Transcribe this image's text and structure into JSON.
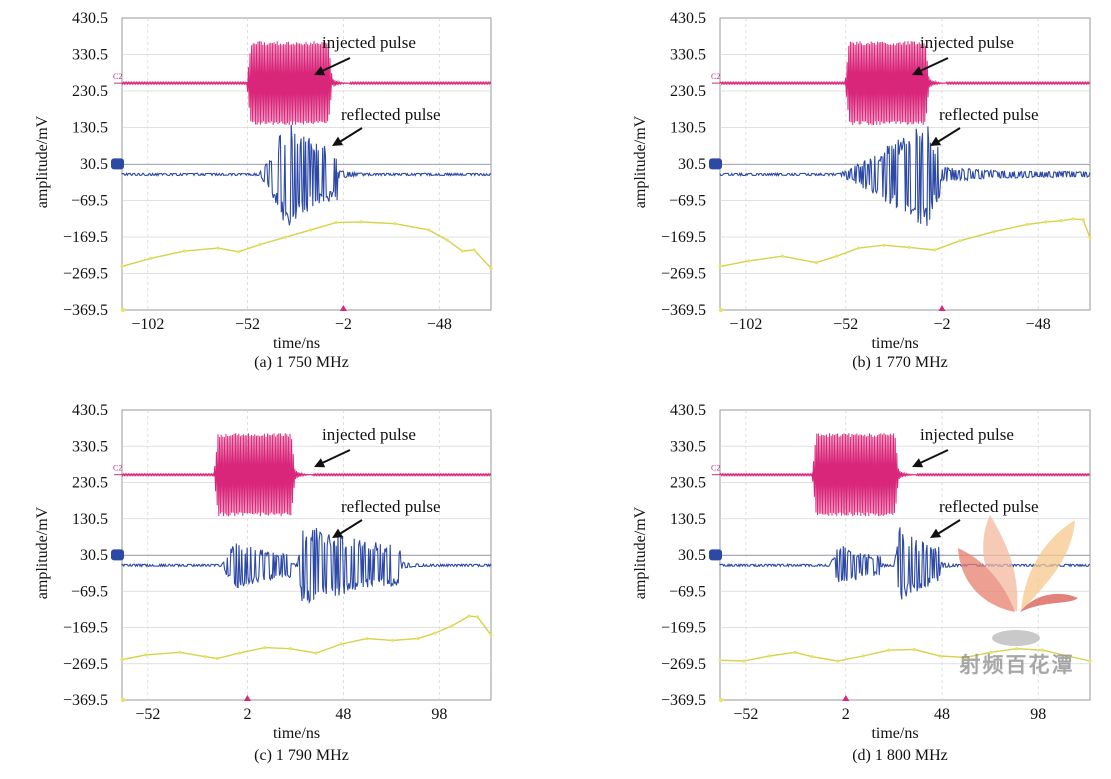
{
  "colors": {
    "injected": "#d9257a",
    "reflected": "#2d49a6",
    "ref_trace": "#d6d24a",
    "ref_marker": "#e6e26a",
    "ch2_marker": "#c4327a",
    "baseline_reflected": "#8e93a3",
    "annotation_text": "#111111"
  },
  "chart_data": [
    {
      "type": "line",
      "panel": "a",
      "caption": "(a) 1 750 MHz",
      "xlabel": "time/ns",
      "ylabel": "amplitude/mV",
      "yticks": [
        "430.5",
        "330.5",
        "230.5",
        "130.5",
        "30.5",
        "−69.5",
        "−169.5",
        "−269.5",
        "−369.5"
      ],
      "xticks": [
        "−102",
        "−52",
        "−2",
        "−48"
      ],
      "ylim": [
        -369.5,
        430.5
      ],
      "xlim": [
        -127,
        92
      ],
      "annotations": [
        "injected pulse",
        "reflected pulse"
      ],
      "trigger_marker": "−2",
      "series": [
        {
          "role": "injected",
          "marker": "C2",
          "baseline": 252,
          "amplitude": 115,
          "start": -53,
          "end": -2
        },
        {
          "role": "reflected",
          "marker": "",
          "baseline": 2,
          "burst": [
            -46,
            1
          ],
          "amplitude": 150,
          "peak_at": -29
        },
        {
          "role": "reference",
          "x": [
            -127,
            -110,
            -90,
            -70,
            -58,
            -45,
            -30,
            -15,
            0,
            15,
            35,
            55,
            66,
            75,
            82,
            92
          ],
          "y": [
            -250,
            -228,
            -208,
            -200,
            -210,
            -190,
            -170,
            -150,
            -130,
            -128,
            -133,
            -150,
            -178,
            -208,
            -205,
            -255
          ]
        }
      ]
    },
    {
      "type": "line",
      "panel": "b",
      "caption": "(b) 1 770 MHz",
      "xlabel": "time/ns",
      "ylabel": "amplitude/mV",
      "yticks": [
        "430.5",
        "330.5",
        "230.5",
        "130.5",
        "30.5",
        "−69.5",
        "−169.5",
        "−269.5",
        "−369.5"
      ],
      "xticks": [
        "−102",
        "−52",
        "−2",
        "−48"
      ],
      "ylim": [
        -369.5,
        430.5
      ],
      "xlim": [
        -127,
        92
      ],
      "annotations": [
        "injected pulse",
        "reflected pulse"
      ],
      "trigger_marker": "−2",
      "series": [
        {
          "role": "injected",
          "marker": "C2",
          "baseline": 252,
          "amplitude": 115,
          "start": -53,
          "end": -3
        },
        {
          "role": "reflected",
          "marker": "",
          "baseline": 2,
          "burst": [
            -58,
            3
          ],
          "amplitude": 150,
          "peak_at": -4,
          "tail": true
        },
        {
          "role": "reference",
          "x": [
            -127,
            -110,
            -90,
            -70,
            -58,
            -45,
            -30,
            -15,
            0,
            15,
            35,
            55,
            66,
            75,
            82,
            88,
            92
          ],
          "y": [
            -250,
            -235,
            -222,
            -240,
            -222,
            -200,
            -192,
            -198,
            -205,
            -180,
            -155,
            -135,
            -128,
            -125,
            -120,
            -122,
            -172
          ]
        }
      ]
    },
    {
      "type": "line",
      "panel": "c",
      "caption": "(c) 1 790 MHz",
      "xlabel": "time/ns",
      "ylabel": "amplitude/mV",
      "yticks": [
        "430.5",
        "330.5",
        "230.5",
        "130.5",
        "30.5",
        "−69.5",
        "−169.5",
        "−269.5",
        "−369.5"
      ],
      "xticks": [
        "−52",
        "2",
        "48",
        "98"
      ],
      "ylim": [
        -369.5,
        430.5
      ],
      "xlim": [
        -54,
        163
      ],
      "annotations": [
        "injected pulse",
        "reflected pulse"
      ],
      "trigger_marker": "2",
      "series": [
        {
          "role": "injected",
          "marker": "C2",
          "baseline": 252,
          "amplitude": 115,
          "start": 0,
          "end": 48
        },
        {
          "role": "reflected",
          "marker": "",
          "baseline": 2,
          "bursts": [
            [
              4,
              45,
              70,
              12
            ],
            [
              49,
              110,
              120,
              52
            ]
          ]
        },
        {
          "role": "reference",
          "x": [
            -54,
            -40,
            -20,
            -5,
            2,
            15,
            30,
            45,
            60,
            75,
            90,
            105,
            120,
            130,
            140,
            150,
            155,
            163
          ],
          "y": [
            -258,
            -245,
            -238,
            -250,
            -255,
            -240,
            -225,
            -228,
            -240,
            -215,
            -200,
            -205,
            -200,
            -185,
            -165,
            -138,
            -140,
            -190
          ]
        }
      ]
    },
    {
      "type": "line",
      "panel": "d",
      "caption": "(d) 1 800 MHz",
      "xlabel": "time/ns",
      "ylabel": "amplitude/mV",
      "yticks": [
        "430.5",
        "330.5",
        "230.5",
        "130.5",
        "30.5",
        "−69.5",
        "−169.5",
        "−269.5",
        "−369.5"
      ],
      "xticks": [
        "−52",
        "2",
        "48",
        "98"
      ],
      "ylim": [
        -369.5,
        430.5
      ],
      "xlim": [
        -54,
        163
      ],
      "annotations": [
        "injected pulse",
        "reflected pulse"
      ],
      "trigger_marker": "2",
      "series": [
        {
          "role": "injected",
          "marker": "C2",
          "baseline": 252,
          "amplitude": 115,
          "start": 0,
          "end": 51
        },
        {
          "role": "reflected",
          "marker": "",
          "baseline": 2,
          "bursts": [
            [
              10,
              40,
              60,
              16
            ],
            [
              48,
              75,
              110,
              51
            ]
          ]
        },
        {
          "role": "reference",
          "x": [
            -54,
            -40,
            -25,
            -10,
            0,
            15,
            30,
            45,
            60,
            75,
            90,
            105,
            120,
            135,
            150,
            163
          ],
          "y": [
            -260,
            -262,
            -248,
            -238,
            -250,
            -262,
            -248,
            -232,
            -230,
            -248,
            -252,
            -238,
            -228,
            -232,
            -248,
            -262
          ]
        }
      ]
    }
  ],
  "watermark": {
    "text": "射频百花潭"
  }
}
